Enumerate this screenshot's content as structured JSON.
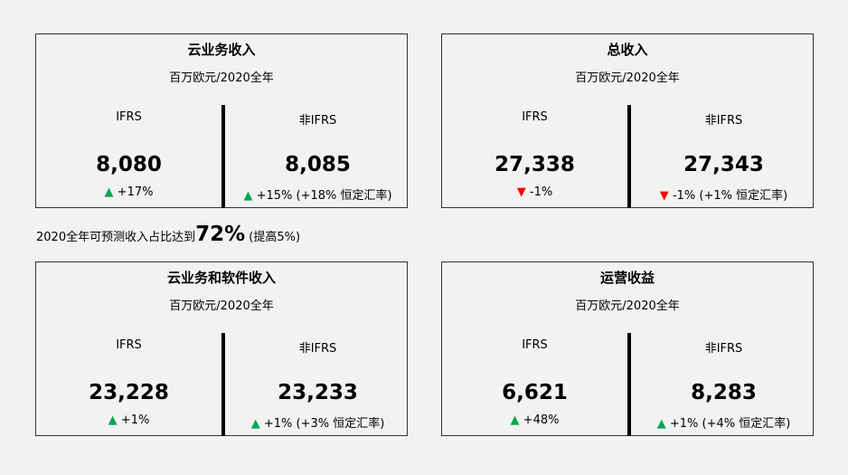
{
  "colors": {
    "up": "#00a651",
    "down": "#ff0000"
  },
  "cards": [
    {
      "title": "云业务收入",
      "subtitle": "百万欧元/2020全年",
      "ifrs": {
        "label": "IFRS",
        "value": "8,080",
        "dir": "up",
        "change": "+17%"
      },
      "nonifrs": {
        "label": "非IFRS",
        "value": "8,085",
        "dir": "up",
        "change": "+15% (+18% 恒定汇率)"
      }
    },
    {
      "title": "总收入",
      "subtitle": "百万欧元/2020全年",
      "ifrs": {
        "label": "IFRS",
        "value": "27,338",
        "dir": "down",
        "change": "-1%"
      },
      "nonifrs": {
        "label": "非IFRS",
        "value": "27,343",
        "dir": "down",
        "change": "-1% (+1% 恒定汇率)"
      }
    },
    {
      "title": "云业务和软件收入",
      "subtitle": "百万欧元/2020全年",
      "ifrs": {
        "label": "IFRS",
        "value": "23,228",
        "dir": "up",
        "change": "+1%"
      },
      "nonifrs": {
        "label": "非IFRS",
        "value": "23,233",
        "dir": "up",
        "change": "+1% (+3% 恒定汇率)"
      }
    },
    {
      "title": "运营收益",
      "subtitle": "百万欧元/2020全年",
      "ifrs": {
        "label": "IFRS",
        "value": "6,621",
        "dir": "up",
        "change": "+48%"
      },
      "nonifrs": {
        "label": "非IFRS",
        "value": "8,283",
        "dir": "up",
        "change": "+1% (+4% 恒定汇率)"
      }
    }
  ],
  "note": {
    "prefix": "2020全年可预测收入占比达到",
    "highlight": "72%",
    "suffix": " (提高5%)"
  }
}
